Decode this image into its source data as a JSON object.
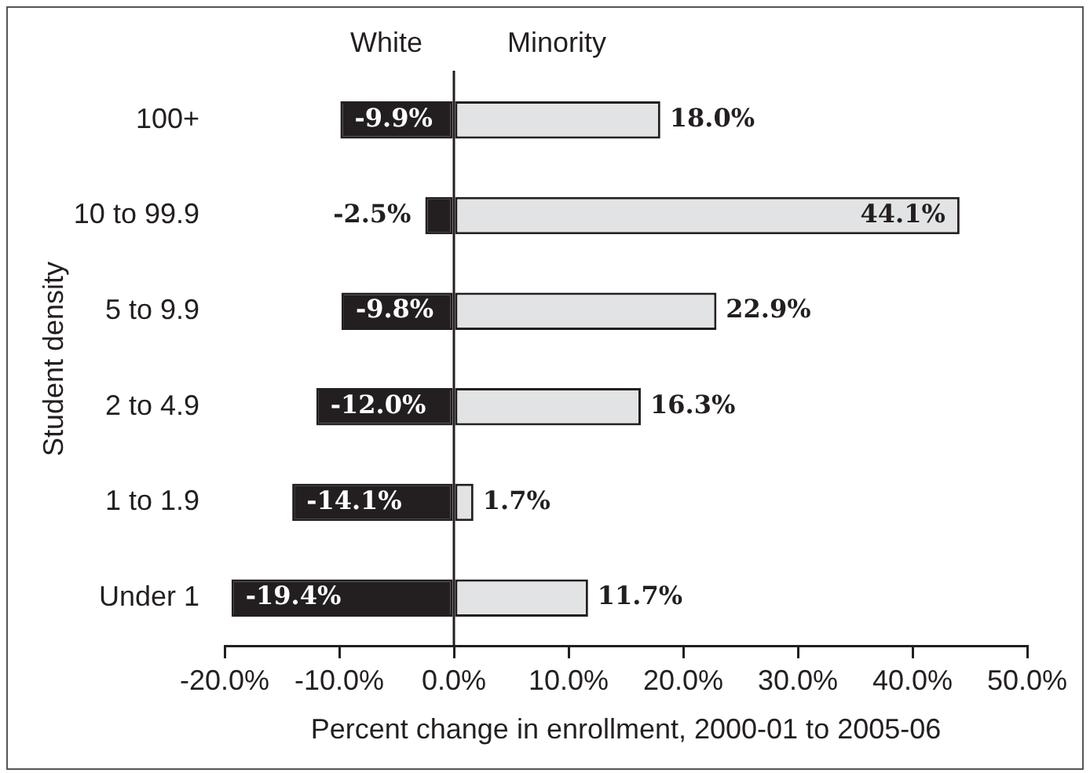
{
  "chart_data": {
    "type": "bar",
    "orientation": "horizontal",
    "stacked": true,
    "xlabel": "Percent change in enrollment, 2000-01 to 2005-06",
    "ylabel": "Student density",
    "categories": [
      "100+",
      "10 to 99.9",
      "5 to 9.9",
      "2 to 4.9",
      "1 to 1.9",
      "Under 1"
    ],
    "series": [
      {
        "name": "White",
        "color": "#231f20",
        "values": [
          -9.9,
          -2.5,
          -9.8,
          -12.0,
          -14.1,
          -19.4
        ],
        "value_labels": [
          "-9.9%",
          "-2.5%",
          "-9.8%",
          "-12.0%",
          "-14.1%",
          "-19.4%"
        ]
      },
      {
        "name": "Minority",
        "color": "#e2e3e4",
        "values": [
          18.0,
          44.1,
          22.9,
          16.3,
          1.7,
          11.7
        ],
        "value_labels": [
          "18.0%",
          "44.1%",
          "22.9%",
          "16.3%",
          "1.7%",
          "11.7%"
        ]
      }
    ],
    "xlim": [
      -20,
      50
    ],
    "xticks": [
      {
        "value": -20,
        "label": "-20.0%"
      },
      {
        "value": -10,
        "label": "-10.0%"
      },
      {
        "value": 0,
        "label": "0.0%"
      },
      {
        "value": 10,
        "label": "10.0%"
      },
      {
        "value": 20,
        "label": "20.0%"
      },
      {
        "value": 30,
        "label": "30.0%"
      },
      {
        "value": 40,
        "label": "40.0%"
      },
      {
        "value": 50,
        "label": "50.0%"
      }
    ]
  }
}
